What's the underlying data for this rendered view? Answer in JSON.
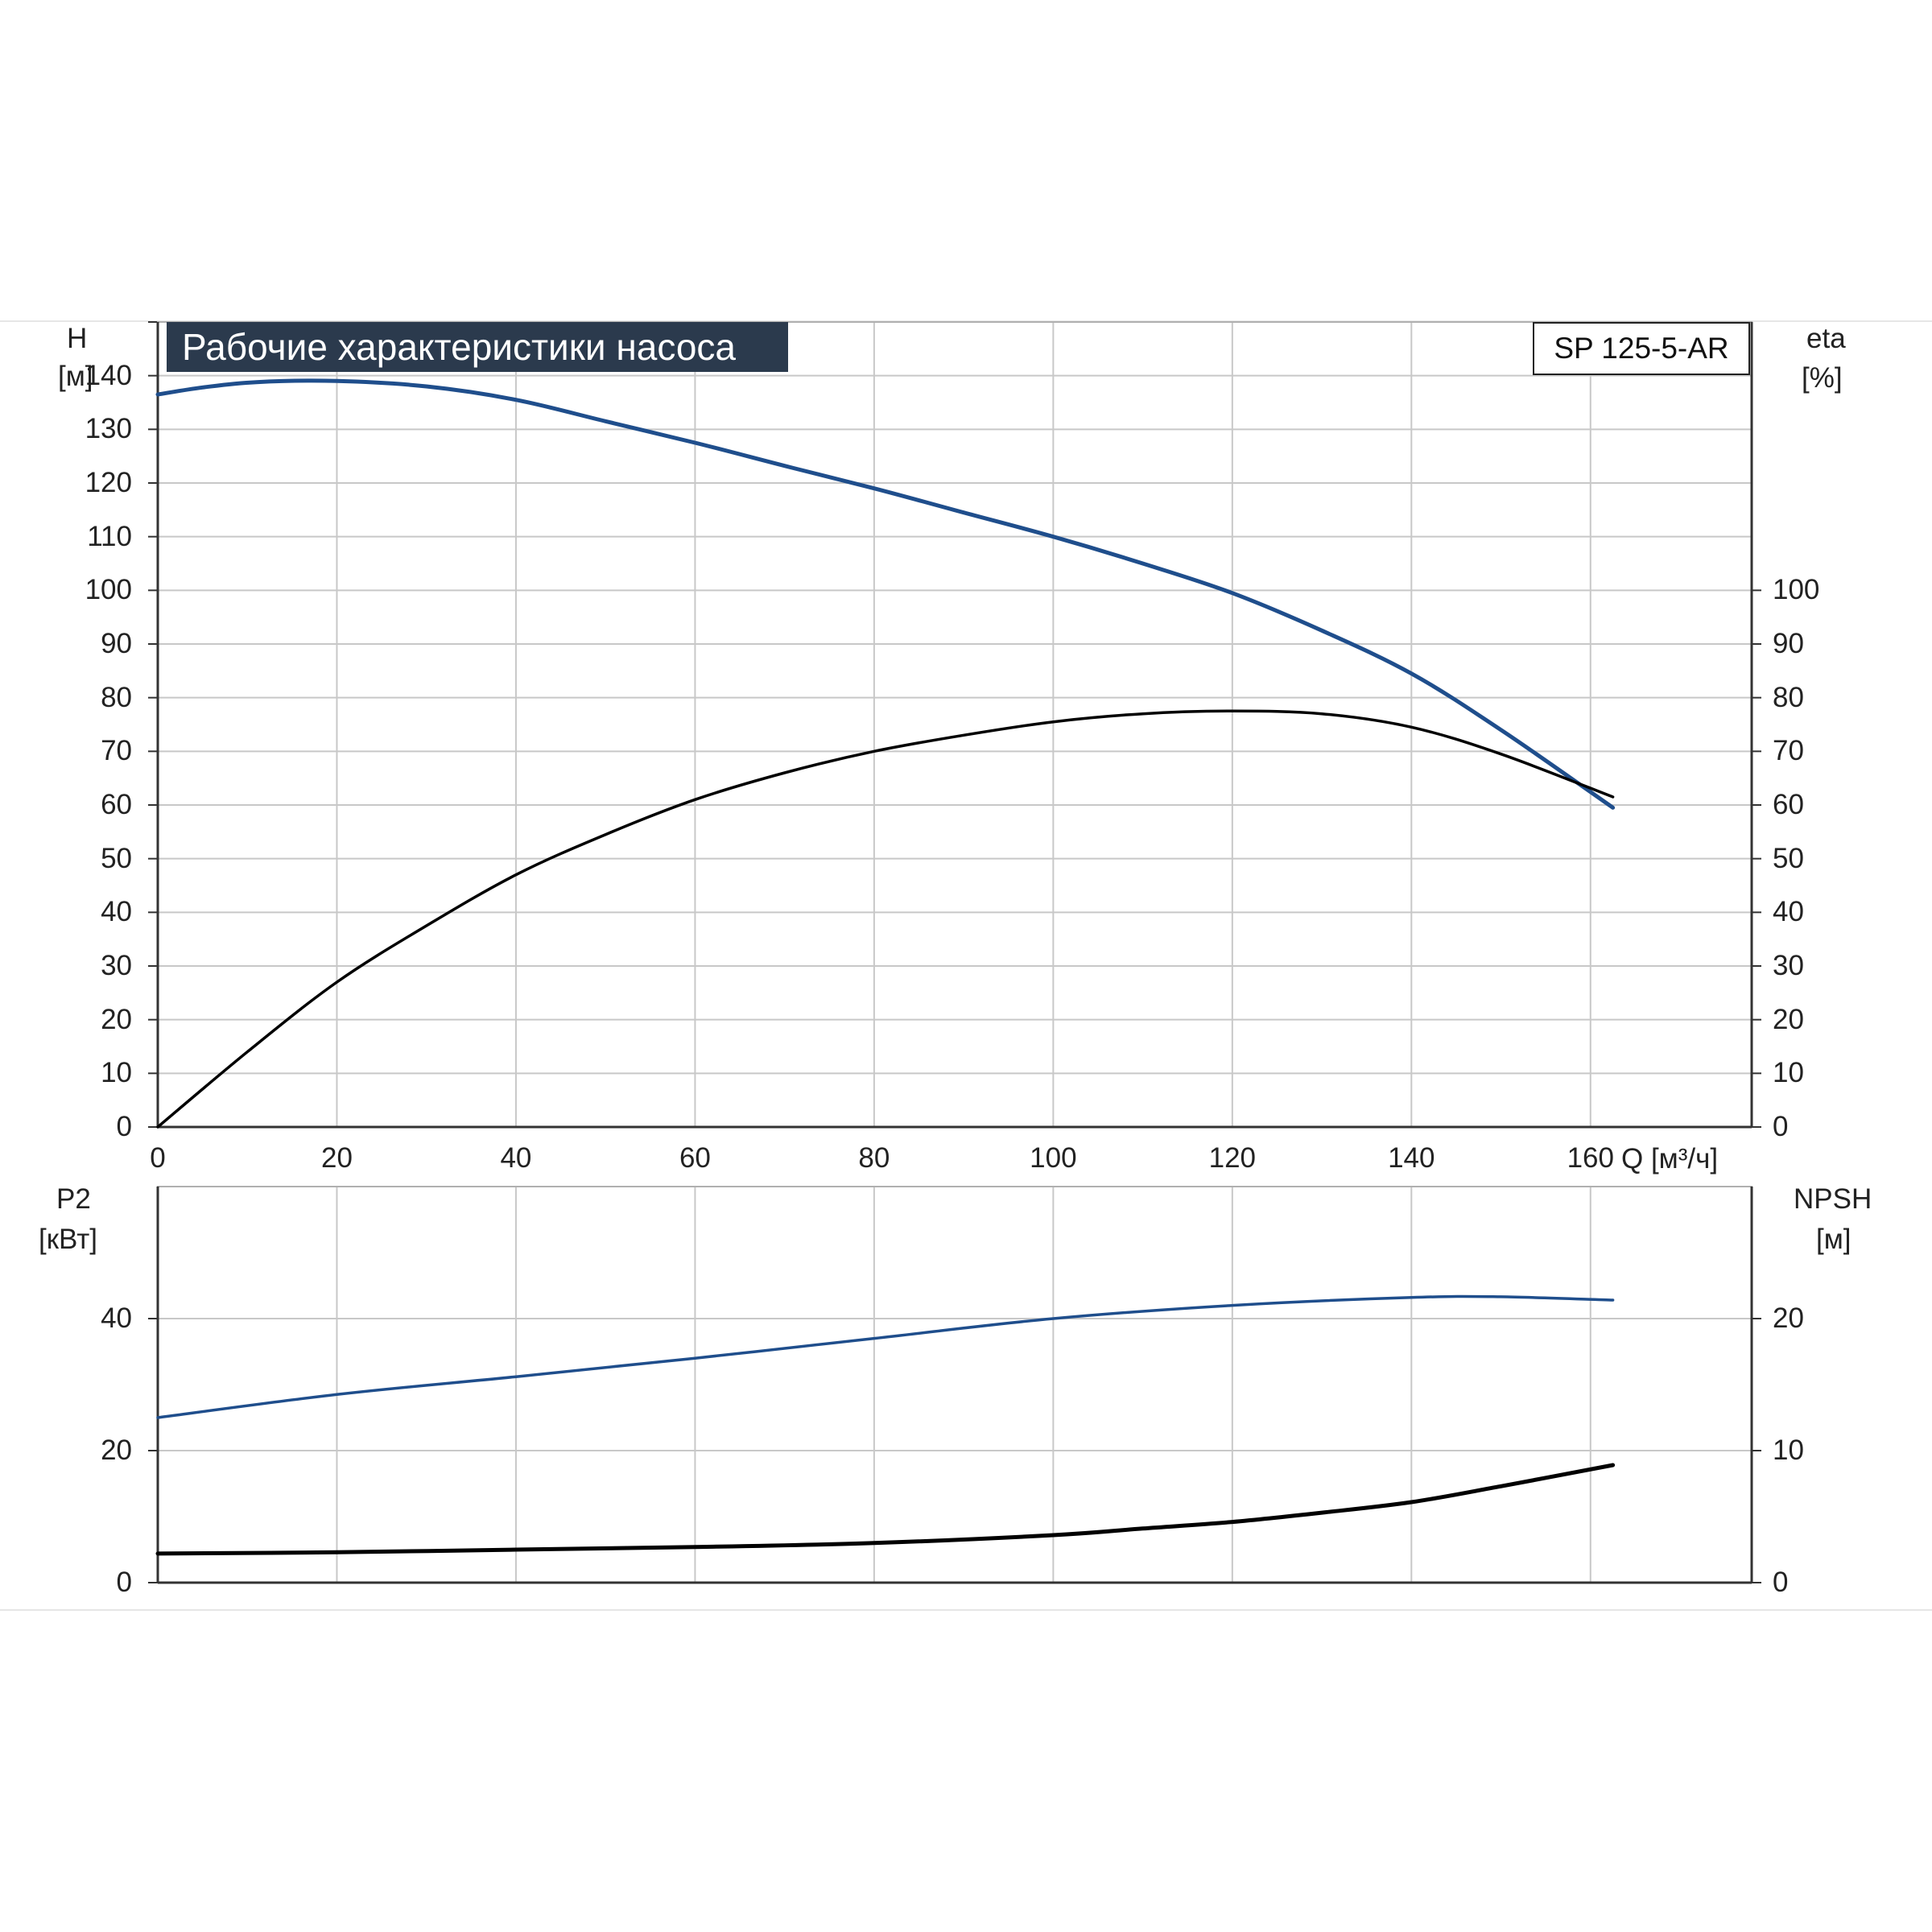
{
  "chart_data": [
    {
      "type": "line",
      "title": "Рабочие характеристики насоса",
      "model_label": "SP 125-5-AR",
      "xlabel": "Q [м³/ч]",
      "xlim": [
        0,
        178
      ],
      "x_ticks": [
        0,
        20,
        40,
        60,
        80,
        100,
        120,
        140,
        160
      ],
      "grid": true,
      "left_axis": {
        "name": "H",
        "unit": "[м]",
        "ylim": [
          0,
          150
        ],
        "ticks": [
          0,
          10,
          20,
          30,
          40,
          50,
          60,
          70,
          80,
          90,
          100,
          110,
          120,
          130,
          140
        ]
      },
      "right_axis": {
        "name": "eta",
        "unit": "[%]",
        "ylim": [
          0,
          150
        ],
        "ticks": [
          0,
          10,
          20,
          30,
          40,
          50,
          60,
          70,
          80,
          90,
          100
        ]
      },
      "series": [
        {
          "key": "head",
          "axis": "left",
          "color": "#1f4e8c",
          "x": [
            0,
            5,
            11,
            20,
            30,
            40,
            50,
            60,
            70,
            80,
            90,
            100,
            110,
            120,
            130,
            140,
            150,
            162.5
          ],
          "y": [
            136.5,
            137.8,
            138.8,
            139,
            138,
            135.5,
            131.5,
            127.5,
            123.2,
            119,
            114.5,
            110,
            105,
            99.5,
            92.5,
            84.5,
            74,
            59.5
          ]
        },
        {
          "key": "efficiency",
          "axis": "right",
          "color": "#000000",
          "x": [
            0,
            10,
            20,
            30,
            40,
            50,
            60,
            70,
            80,
            90,
            100,
            110,
            120,
            130,
            140,
            150,
            162.5
          ],
          "y": [
            0,
            14,
            27,
            37.5,
            47,
            54.5,
            61,
            66,
            70,
            73,
            75.5,
            77,
            77.5,
            77,
            74.5,
            69.5,
            61.5
          ]
        }
      ]
    },
    {
      "type": "line",
      "xlim": [
        0,
        178
      ],
      "grid": true,
      "left_axis": {
        "name": "P2",
        "unit": "[кВт]",
        "ylim": [
          0,
          60
        ],
        "ticks": [
          0,
          20,
          40
        ]
      },
      "right_axis": {
        "name": "NPSH",
        "unit": "[м]",
        "ylim": [
          0,
          30
        ],
        "ticks": [
          0,
          10,
          20
        ]
      },
      "series": [
        {
          "key": "power",
          "axis": "left",
          "color": "#1f4e8c",
          "x": [
            0,
            20,
            40,
            60,
            80,
            100,
            120,
            140,
            150,
            162.5
          ],
          "y": [
            25,
            28.5,
            31.2,
            34,
            37,
            40,
            42,
            43.2,
            43.3,
            42.8
          ]
        },
        {
          "key": "npsh",
          "axis": "right",
          "color": "#000000",
          "x": [
            0,
            20,
            40,
            60,
            80,
            100,
            110,
            120,
            130,
            140,
            150,
            162.5
          ],
          "y": [
            2.2,
            2.3,
            2.5,
            2.7,
            3,
            3.6,
            4.1,
            4.6,
            5.3,
            6.1,
            7.3,
            8.9
          ]
        }
      ]
    }
  ]
}
